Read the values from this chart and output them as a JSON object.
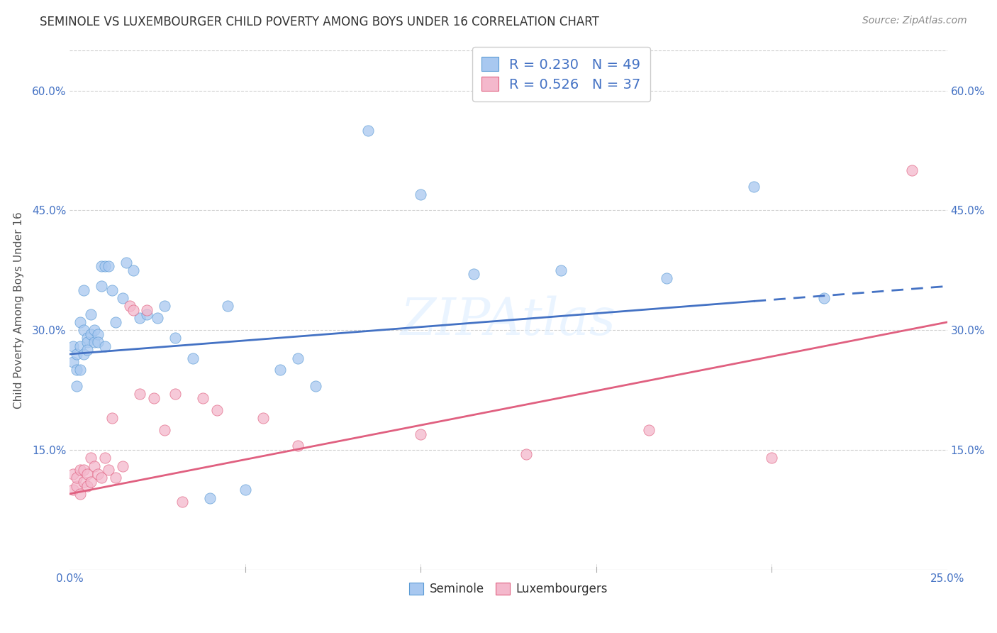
{
  "title": "SEMINOLE VS LUXEMBOURGER CHILD POVERTY AMONG BOYS UNDER 16 CORRELATION CHART",
  "source": "Source: ZipAtlas.com",
  "ylabel": "Child Poverty Among Boys Under 16",
  "xlim": [
    0.0,
    0.25
  ],
  "ylim": [
    0.0,
    0.65
  ],
  "xticks": [
    0.0,
    0.05,
    0.1,
    0.15,
    0.2,
    0.25
  ],
  "xtick_labels_visible": [
    "0.0%",
    "",
    "",
    "",
    "",
    "25.0%"
  ],
  "yticks": [
    0.0,
    0.15,
    0.3,
    0.45,
    0.6
  ],
  "ytick_labels": [
    "",
    "15.0%",
    "30.0%",
    "45.0%",
    "60.0%"
  ],
  "seminole_color": "#A8C8F0",
  "seminole_edge_color": "#5B9BD5",
  "luxembourger_color": "#F4B8CC",
  "luxembourger_edge_color": "#E06080",
  "seminole_R": 0.23,
  "seminole_N": 49,
  "luxembourger_R": 0.526,
  "luxembourger_N": 37,
  "legend_text_color": "#4472C4",
  "trendline_seminole_color": "#4472C4",
  "trendline_luxembourger_color": "#E06080",
  "trendline_seminole_y0": 0.27,
  "trendline_seminole_y1": 0.355,
  "trendline_luxembourger_y0": 0.095,
  "trendline_luxembourger_y1": 0.31,
  "trendline_dashed_start_x": 0.195,
  "watermark": "ZIPAtlas",
  "seminole_x": [
    0.001,
    0.001,
    0.002,
    0.002,
    0.002,
    0.003,
    0.003,
    0.003,
    0.004,
    0.004,
    0.004,
    0.005,
    0.005,
    0.005,
    0.006,
    0.006,
    0.007,
    0.007,
    0.008,
    0.008,
    0.009,
    0.009,
    0.01,
    0.01,
    0.011,
    0.012,
    0.013,
    0.015,
    0.016,
    0.018,
    0.02,
    0.022,
    0.025,
    0.027,
    0.03,
    0.035,
    0.04,
    0.045,
    0.05,
    0.06,
    0.065,
    0.07,
    0.085,
    0.1,
    0.115,
    0.14,
    0.17,
    0.195,
    0.215
  ],
  "seminole_y": [
    0.26,
    0.28,
    0.23,
    0.27,
    0.25,
    0.25,
    0.28,
    0.31,
    0.27,
    0.3,
    0.35,
    0.29,
    0.285,
    0.275,
    0.295,
    0.32,
    0.285,
    0.3,
    0.295,
    0.285,
    0.38,
    0.355,
    0.28,
    0.38,
    0.38,
    0.35,
    0.31,
    0.34,
    0.385,
    0.375,
    0.315,
    0.32,
    0.315,
    0.33,
    0.29,
    0.265,
    0.09,
    0.33,
    0.1,
    0.25,
    0.265,
    0.23,
    0.55,
    0.47,
    0.37,
    0.375,
    0.365,
    0.48,
    0.34
  ],
  "luxembourger_x": [
    0.001,
    0.001,
    0.002,
    0.002,
    0.003,
    0.003,
    0.004,
    0.004,
    0.005,
    0.005,
    0.006,
    0.006,
    0.007,
    0.008,
    0.009,
    0.01,
    0.011,
    0.012,
    0.013,
    0.015,
    0.017,
    0.018,
    0.02,
    0.022,
    0.024,
    0.027,
    0.03,
    0.032,
    0.038,
    0.042,
    0.055,
    0.065,
    0.1,
    0.13,
    0.165,
    0.2,
    0.24
  ],
  "luxembourger_y": [
    0.1,
    0.12,
    0.105,
    0.115,
    0.125,
    0.095,
    0.11,
    0.125,
    0.105,
    0.12,
    0.11,
    0.14,
    0.13,
    0.12,
    0.115,
    0.14,
    0.125,
    0.19,
    0.115,
    0.13,
    0.33,
    0.325,
    0.22,
    0.325,
    0.215,
    0.175,
    0.22,
    0.085,
    0.215,
    0.2,
    0.19,
    0.155,
    0.17,
    0.145,
    0.175,
    0.14,
    0.5
  ]
}
